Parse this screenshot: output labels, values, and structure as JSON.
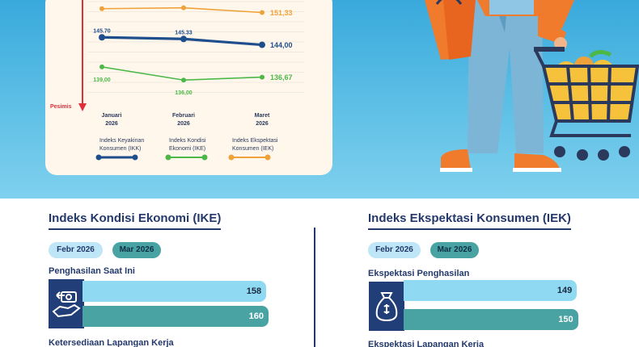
{
  "chart_data": {
    "type": "line",
    "categories": [
      "Januari\n2026",
      "Februari\n2026",
      "Maret\n2026"
    ],
    "series": [
      {
        "name": "Indeks Keyakinan\nKonsumen (IKK)",
        "values": [
          145.7,
          145.33,
          144.0
        ],
        "labels": [
          "145.70",
          "145.33",
          "144,00"
        ],
        "color": "#1f4e8c"
      },
      {
        "name": "Indeks  Kondisi\nEkonomi (IKE)",
        "values": [
          139.0,
          136.0,
          136.67
        ],
        "labels": [
          "139,00",
          "136,00",
          "136,67"
        ],
        "color": "#4cb848"
      },
      {
        "name": "Indeks  Ekspektasi\nKonsumen (IEK)",
        "values": [
          152.2,
          152.4,
          151.33
        ],
        "labels": [
          "",
          "",
          "151,33"
        ],
        "color": "#f0a23a"
      }
    ],
    "ylabel_bottom": "Pesimis",
    "ylim": [
      130,
      156
    ]
  },
  "colors": {
    "navy": "#24396b",
    "light_bar": "#8fd9f3",
    "teal_bar": "#4aa3a3",
    "red_arrow": "#e0303a"
  },
  "ike": {
    "title": "Indeks Kondisi Ekonomi (IKE)",
    "feb_label": "Febr 2026",
    "mar_label": "Mar 2026",
    "items": [
      {
        "label": "Penghasilan Saat Ini",
        "feb": 158,
        "mar": 160,
        "feb_text": "158",
        "mar_text": "160",
        "icon": "money-exchange-icon"
      },
      {
        "label": "Ketersediaan Lapangan Kerja"
      }
    ]
  },
  "iek": {
    "title": "Indeks Ekspektasi Konsumen (IEK)",
    "feb_label": "Febr 2026",
    "mar_label": "Mar 2026",
    "items": [
      {
        "label": "Ekspektasi Penghasilan",
        "feb": 149,
        "mar": 150,
        "feb_text": "149",
        "mar_text": "150",
        "icon": "money-bag-icon"
      },
      {
        "label": "Ekspektasi Lapangan Kerja"
      }
    ]
  }
}
